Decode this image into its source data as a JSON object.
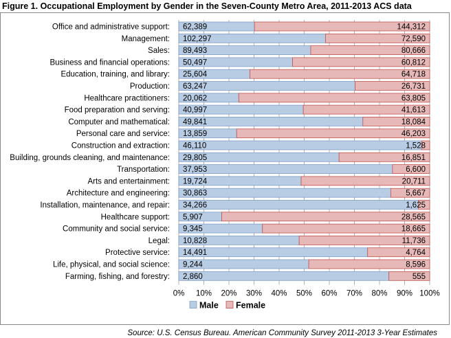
{
  "title": "Figure 1. Occupational Employment by Gender in the Seven-County Metro Area, 2011-2013 ACS data",
  "source": "Source:  U.S. Census Bureau. American Community Survey 2011-2013 3-Year Estimates",
  "colors": {
    "male": "#B8CCE4",
    "male_edge": "#7F9DC6",
    "female": "#E6B9B8",
    "female_edge": "#C0504D",
    "grid": "#B0B0B0"
  },
  "chart_data": {
    "type": "bar",
    "stacked": "100%",
    "orientation": "horizontal",
    "categories": [
      "Office and administrative support:",
      "Management:",
      "Sales:",
      "Business and financial operations:",
      "Education, training, and library:",
      "Production:",
      "Healthcare practitioners:",
      "Food preparation and serving:",
      "Computer and mathematical:",
      "Personal care and service:",
      "Construction and extraction:",
      "Building, grounds cleaning, and maintenance:",
      "Transportation:",
      "Arts and entertainment:",
      "Architecture and engineering:",
      "Installation, maintenance, and repair:",
      "Healthcare support:",
      "Community and social service:",
      "Legal:",
      "Protective service:",
      "Life, physical, and social science:",
      "Farming, fishing, and forestry:"
    ],
    "series": [
      {
        "name": "Male",
        "values": [
          62389,
          102297,
          89493,
          50497,
          25604,
          63247,
          20062,
          40997,
          49841,
          13859,
          46110,
          29805,
          37953,
          19724,
          30863,
          34266,
          5907,
          9345,
          10828,
          14491,
          9244,
          2860
        ]
      },
      {
        "name": "Female",
        "values": [
          144312,
          72590,
          80666,
          60812,
          64718,
          26731,
          63805,
          41613,
          18084,
          46203,
          1528,
          16851,
          6600,
          20711,
          5667,
          1625,
          28565,
          18665,
          11736,
          4764,
          8596,
          555
        ]
      }
    ],
    "value_labels": {
      "male": [
        "62,389",
        "102,297",
        "89,493",
        "50,497",
        "25,604",
        "63,247",
        "20,062",
        "40,997",
        "49,841",
        "13,859",
        "46,110",
        "29,805",
        "37,953",
        "19,724",
        "30,863",
        "34,266",
        "5,907",
        "9,345",
        "10,828",
        "14,491",
        "9,244",
        "2,860"
      ],
      "female": [
        "144,312",
        "72,590",
        "80,666",
        "60,812",
        "64,718",
        "26,731",
        "63,805",
        "41,613",
        "18,084",
        "46,203",
        "1,528",
        "16,851",
        "6,600",
        "20,711",
        "5,667",
        "1,625",
        "28,565",
        "18,665",
        "11,736",
        "4,764",
        "8,596",
        "555"
      ]
    },
    "x_ticks": [
      "0%",
      "10%",
      "20%",
      "30%",
      "40%",
      "50%",
      "60%",
      "70%",
      "80%",
      "90%",
      "100%"
    ],
    "xlim": [
      0,
      100
    ],
    "grid": true,
    "legend": {
      "position": "bottom",
      "entries": [
        "Male",
        "Female"
      ]
    }
  }
}
